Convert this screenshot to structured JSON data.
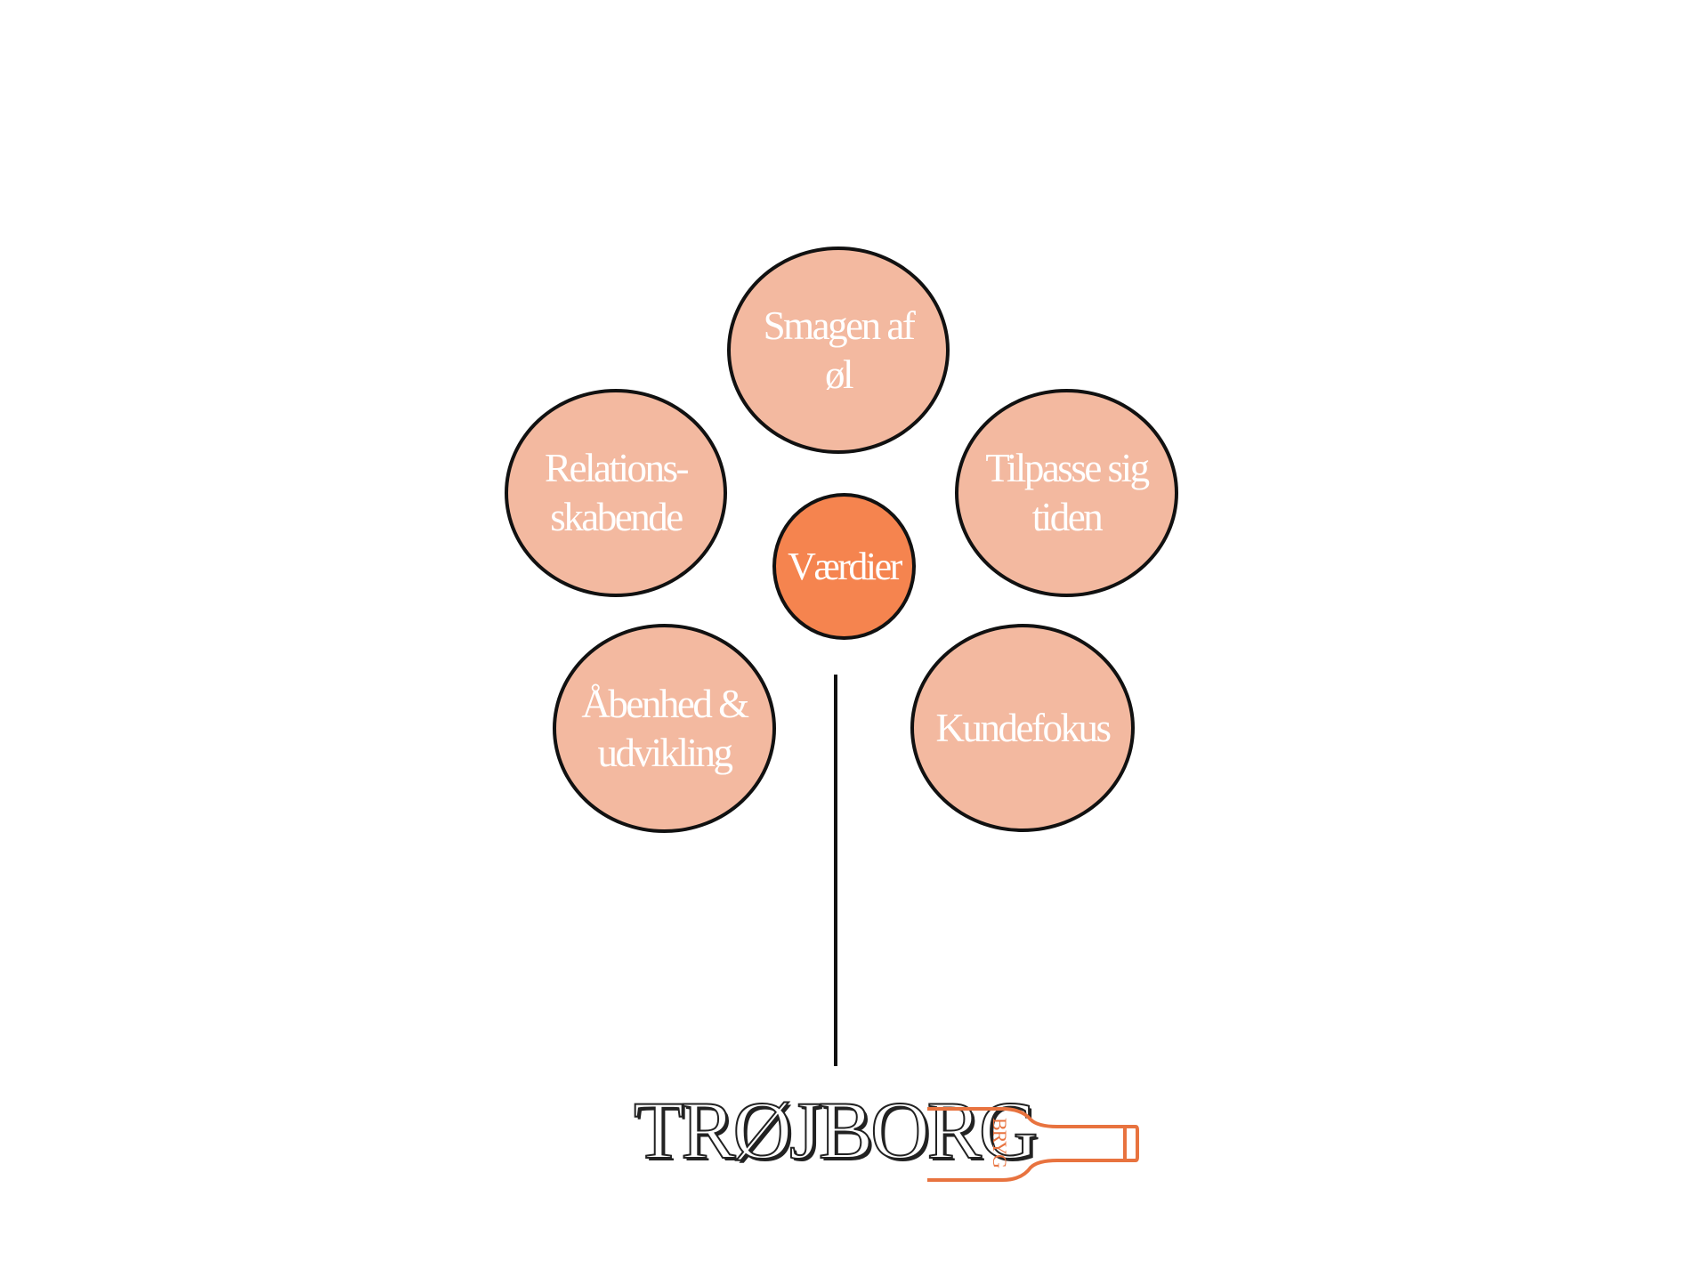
{
  "diagram": {
    "center": {
      "label": "Værdier"
    },
    "petals": [
      {
        "id": "top",
        "lines": [
          "Smagen af",
          "øl"
        ]
      },
      {
        "id": "upper-left",
        "lines": [
          "Relations-",
          "skabende"
        ]
      },
      {
        "id": "upper-right",
        "lines": [
          "Tilpasse sig",
          "tiden"
        ]
      },
      {
        "id": "lower-left",
        "lines": [
          "Åbenhed &",
          "udvikling"
        ]
      },
      {
        "id": "lower-right",
        "lines": [
          "Kundefokus"
        ]
      }
    ]
  },
  "logo": {
    "wordmark": "TRØJBORG",
    "sub": "BRYG"
  },
  "colors": {
    "petal_fill": "#f3b9a0",
    "center_fill": "#f5844f",
    "outline": "#111111",
    "logo_accent": "#e8733f"
  }
}
